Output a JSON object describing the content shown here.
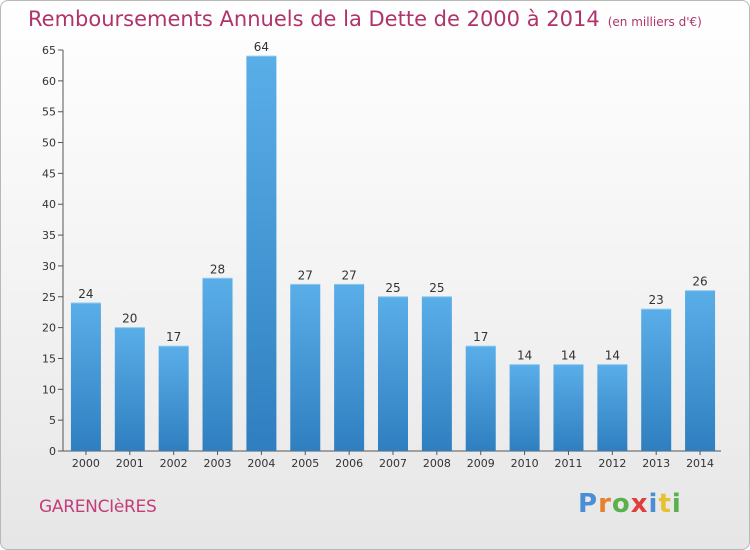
{
  "title": "Remboursements Annuels de la Dette de 2000 à 2014",
  "unit": "(en milliers d'€)",
  "commune": "GARENCIèRES",
  "brand": {
    "text": "Proxiti",
    "letters": [
      {
        "c": "P",
        "color": "#4a8fd6"
      },
      {
        "c": "r",
        "color": "#e8812e"
      },
      {
        "c": "o",
        "color": "#5bb04c"
      },
      {
        "c": "x",
        "color": "#e03d3d"
      },
      {
        "c": "i",
        "color": "#4a8fd6"
      },
      {
        "c": "t",
        "color": "#e8c22e"
      },
      {
        "c": "i",
        "color": "#5bb04c"
      }
    ]
  },
  "chart_data": {
    "type": "bar",
    "title": "Remboursements Annuels de la Dette de 2000 à 2014",
    "categories": [
      "2000",
      "2001",
      "2002",
      "2003",
      "2004",
      "2005",
      "2006",
      "2007",
      "2008",
      "2009",
      "2010",
      "2011",
      "2012",
      "2013",
      "2014"
    ],
    "values": [
      24,
      20,
      17,
      28,
      64,
      27,
      27,
      25,
      25,
      17,
      14,
      14,
      14,
      23,
      26
    ],
    "ylim": [
      0,
      65
    ],
    "yticks": [
      0,
      5,
      10,
      15,
      20,
      25,
      30,
      35,
      40,
      45,
      50,
      55,
      60,
      65
    ],
    "grid": false,
    "bar_color_top": "#5aaee8",
    "bar_color_bottom": "#2f7fc0"
  }
}
